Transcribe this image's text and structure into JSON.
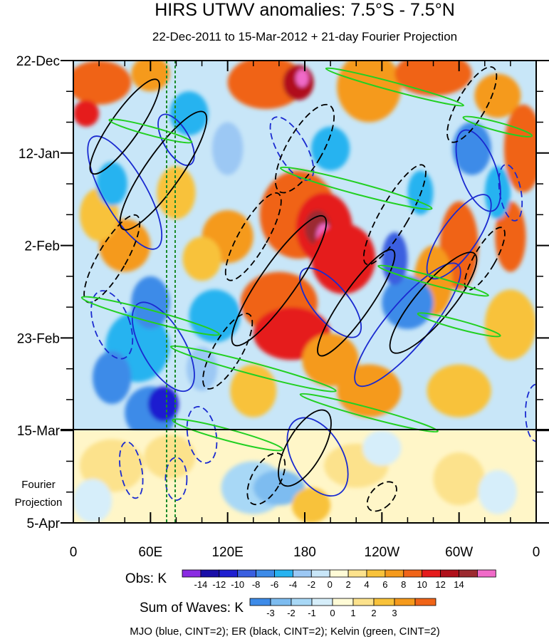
{
  "chart_data": {
    "type": "heatmap",
    "title": "HIRS UTWV anomalies: 7.5°S - 7.5°N",
    "subtitle": "22-Dec-2011 to 15-Mar-2012 + 21-day Fourier Projection",
    "x_ticks": [
      "0",
      "60E",
      "120E",
      "180",
      "120W",
      "60W",
      "0"
    ],
    "x_tick_lon": [
      0,
      60,
      120,
      180,
      240,
      300,
      360
    ],
    "y_ticks": [
      "22-Dec",
      "12-Jan",
      "2-Feb",
      "23-Feb",
      "15-Mar",
      "5-Apr"
    ],
    "y_tick_day": [
      0,
      21,
      42,
      63,
      84,
      105
    ],
    "projection_start_label": "15-Mar",
    "projection_label_line1": "Fourier",
    "projection_label_line2": "Projection",
    "obs_colorbar": {
      "label": "Obs: K",
      "levels": [
        "-14",
        "-12",
        "-10",
        "-8",
        "-6",
        "-4",
        "-2",
        "0",
        "2",
        "4",
        "6",
        "8",
        "10",
        "12",
        "14"
      ],
      "colors": [
        "#8a2be2",
        "#1a0ea8",
        "#1f1fd0",
        "#3a5fe0",
        "#3d8be8",
        "#27b3f0",
        "#9cc8f4",
        "#c8e6f8",
        "#fffbd6",
        "#fce28c",
        "#f8c23a",
        "#f59a1c",
        "#f06418",
        "#e51c1c",
        "#b0101a",
        "#9c2a30",
        "#f06ac8"
      ]
    },
    "waves_colorbar": {
      "label": "Sum of Waves: K",
      "levels": [
        "-3",
        "-2",
        "-1",
        "0",
        "1",
        "2",
        "3"
      ],
      "colors": [
        "#3d8be8",
        "#7dbcf0",
        "#a8d8f6",
        "#d6eefa",
        "#fffbd6",
        "#fce28c",
        "#f8c23a",
        "#f59a1c",
        "#f06418"
      ]
    },
    "wave_contours": [
      {
        "name": "MJO",
        "color": "#1a2ad0",
        "cint": 2
      },
      {
        "name": "ER",
        "color": "#000000",
        "cint": 2
      },
      {
        "name": "Kelvin",
        "color": "#22d022",
        "cint": 2
      }
    ],
    "footnote": "MJO (blue, CINT=2); ER (black, CINT=2); Kelvin (green, CINT=2)"
  }
}
